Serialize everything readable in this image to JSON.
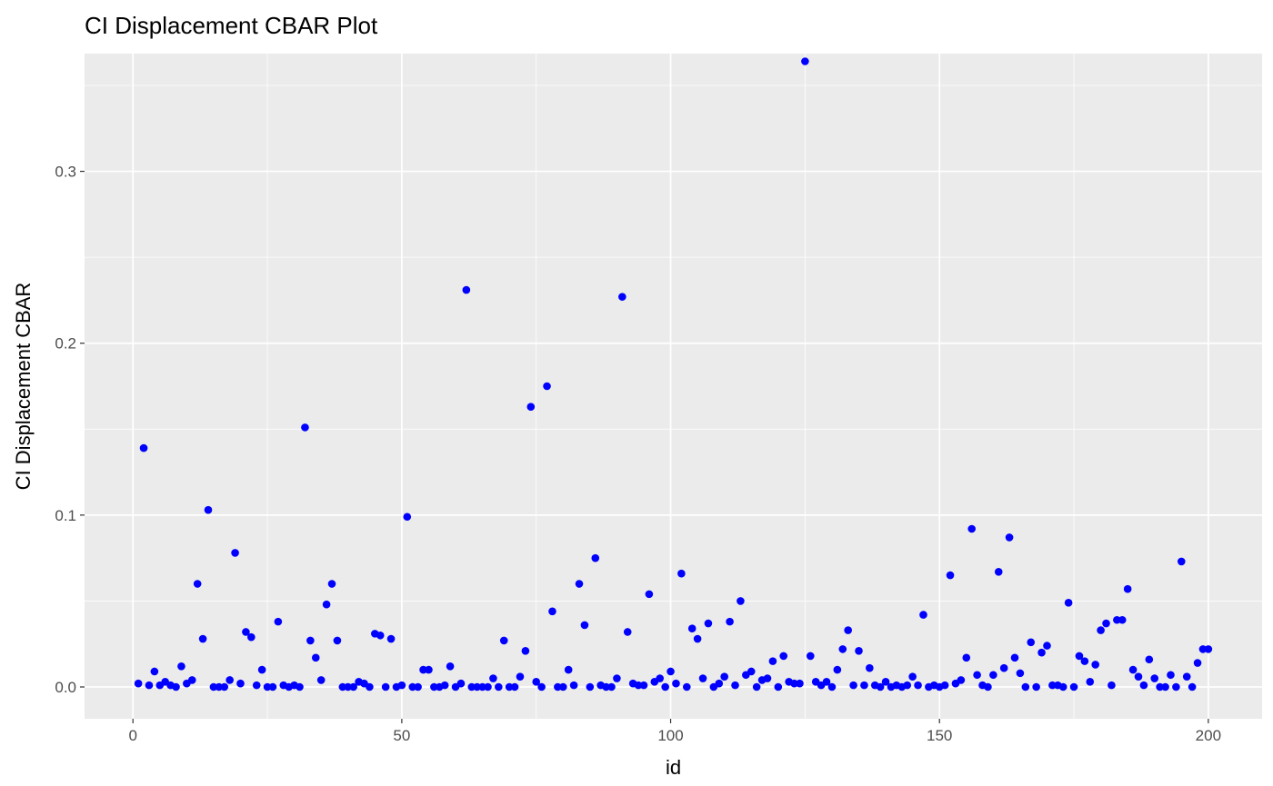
{
  "chart_data": {
    "type": "scatter",
    "title": "CI Displacement CBAR Plot",
    "xlabel": "id",
    "ylabel": "CI Displacement CBAR",
    "xlim": [
      -9,
      210
    ],
    "ylim": [
      -0.0185,
      0.3685
    ],
    "x_ticks": [
      0,
      50,
      100,
      150,
      200
    ],
    "x_tick_labels": [
      "0",
      "50",
      "100",
      "150",
      "200"
    ],
    "y_ticks": [
      0.0,
      0.1,
      0.2,
      0.3
    ],
    "y_tick_labels": [
      "0.0",
      "0.1",
      "0.2",
      "0.3"
    ],
    "grid": true,
    "legend": "none",
    "colors": {
      "point": "#0000ff",
      "panel": "#ebebeb",
      "grid": "#ffffff"
    },
    "series": [
      {
        "x": [
          1,
          2,
          3,
          4,
          5,
          6,
          7,
          8,
          9,
          10,
          11,
          12,
          13,
          14,
          15,
          16,
          17,
          18,
          19,
          20,
          21,
          22,
          23,
          24,
          25,
          26,
          27,
          28,
          29,
          30,
          31,
          32,
          33,
          34,
          35,
          36,
          37,
          38,
          39,
          40,
          41,
          42,
          43,
          44,
          45,
          46,
          47,
          48,
          49,
          50,
          51,
          52,
          53,
          54,
          55,
          56,
          57,
          58,
          59,
          60,
          61,
          62,
          63,
          64,
          65,
          66,
          67,
          68,
          69,
          70,
          71,
          72,
          73,
          74,
          75,
          76,
          77,
          78,
          79,
          80,
          81,
          82,
          83,
          84,
          85,
          86,
          87,
          88,
          89,
          90,
          91,
          92,
          93,
          94,
          95,
          96,
          97,
          98,
          99,
          100,
          101,
          102,
          103,
          104,
          105,
          106,
          107,
          108,
          109,
          110,
          111,
          112,
          113,
          114,
          115,
          116,
          117,
          118,
          119,
          120,
          121,
          122,
          123,
          124,
          125,
          126,
          127,
          128,
          129,
          130,
          131,
          132,
          133,
          134,
          135,
          136,
          137,
          138,
          139,
          140,
          141,
          142,
          143,
          144,
          145,
          146,
          147,
          148,
          149,
          150,
          151,
          152,
          153,
          154,
          155,
          156,
          157,
          158,
          159,
          160,
          161,
          162,
          163,
          164,
          165,
          166,
          167,
          168,
          169,
          170,
          171,
          172,
          173,
          174,
          175,
          176,
          177,
          178,
          179,
          180,
          181,
          182,
          183,
          184,
          185,
          186,
          187,
          188,
          189,
          190,
          191,
          192,
          193,
          194,
          195,
          196,
          197,
          198,
          199,
          200
        ],
        "y": [
          0.002,
          0.139,
          0.001,
          0.009,
          0.001,
          0.003,
          0.001,
          0.0,
          0.012,
          0.002,
          0.004,
          0.06,
          0.028,
          0.103,
          0.0,
          0.0,
          0.0,
          0.004,
          0.078,
          0.002,
          0.032,
          0.029,
          0.001,
          0.01,
          0.0,
          0.0,
          0.038,
          0.001,
          0.0,
          0.001,
          0.0,
          0.151,
          0.027,
          0.017,
          0.004,
          0.048,
          0.06,
          0.027,
          0.0,
          0.0,
          0.0,
          0.003,
          0.002,
          0.0,
          0.031,
          0.03,
          0.0,
          0.028,
          0.0,
          0.001,
          0.099,
          0.0,
          0.0,
          0.01,
          0.01,
          0.0,
          0.0,
          0.001,
          0.012,
          0.0,
          0.002,
          0.231,
          0.0,
          0.0,
          0.0,
          0.0,
          0.005,
          0.0,
          0.027,
          0.0,
          0.0,
          0.006,
          0.021,
          0.163,
          0.003,
          0.0,
          0.175,
          0.044,
          0.0,
          0.0,
          0.01,
          0.001,
          0.06,
          0.036,
          0.0,
          0.075,
          0.001,
          0.0,
          0.0,
          0.005,
          0.227,
          0.032,
          0.002,
          0.001,
          0.001,
          0.054,
          0.003,
          0.005,
          0.0,
          0.009,
          0.002,
          0.066,
          0.0,
          0.034,
          0.028,
          0.005,
          0.037,
          0.0,
          0.002,
          0.006,
          0.038,
          0.001,
          0.05,
          0.007,
          0.009,
          0.0,
          0.004,
          0.005,
          0.015,
          0.0,
          0.018,
          0.003,
          0.002,
          0.002,
          0.364,
          0.018,
          0.003,
          0.001,
          0.003,
          0.0,
          0.01,
          0.022,
          0.033,
          0.001,
          0.021,
          0.001,
          0.011,
          0.001,
          0.0,
          0.003,
          0.0,
          0.001,
          0.0,
          0.001,
          0.006,
          0.001,
          0.042,
          0.0,
          0.001,
          0.0,
          0.001,
          0.065,
          0.002,
          0.004,
          0.017,
          0.092,
          0.007,
          0.001,
          0.0,
          0.007,
          0.067,
          0.011,
          0.087,
          0.017,
          0.008,
          0.0,
          0.026,
          0.0,
          0.02,
          0.024,
          0.001,
          0.001,
          0.0,
          0.049,
          0.0,
          0.018,
          0.015,
          0.003,
          0.013,
          0.033,
          0.037,
          0.001,
          0.039,
          0.039,
          0.057,
          0.01,
          0.006,
          0.001,
          0.016,
          0.005,
          0.0,
          0.0,
          0.007,
          0.0,
          0.073,
          0.006,
          0.0,
          0.014,
          0.022,
          0.022
        ]
      }
    ]
  }
}
